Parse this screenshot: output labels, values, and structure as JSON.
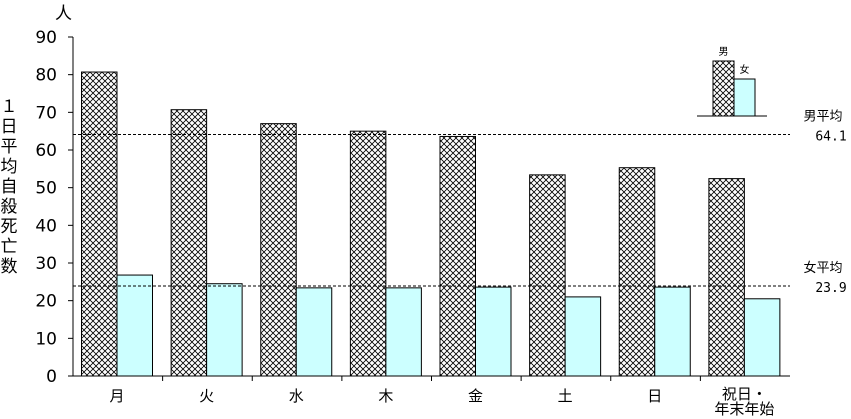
{
  "chart_data": {
    "type": "bar",
    "unit": "人",
    "ylabel": "１日平均自殺死亡数",
    "ylim": [
      0,
      90
    ],
    "yticks": [
      0,
      10,
      20,
      30,
      40,
      50,
      60,
      70,
      80,
      90
    ],
    "categories": [
      "月",
      "火",
      "水",
      "木",
      "金",
      "土",
      "日",
      [
        "祝日・",
        "年末年始"
      ]
    ],
    "series": [
      {
        "name": "男",
        "values": [
          80.7,
          70.7,
          67.0,
          65.0,
          63.6,
          53.4,
          55.3,
          52.4
        ],
        "fill": "crosshatch"
      },
      {
        "name": "女",
        "values": [
          26.8,
          24.5,
          23.4,
          23.4,
          23.6,
          21.0,
          23.6,
          20.5
        ],
        "fill": "#ccffff"
      }
    ],
    "averages": [
      {
        "label": "男平均",
        "value": "64.1",
        "y": 64.1
      },
      {
        "label": "女平均",
        "value": "23.9",
        "y": 23.9
      }
    ],
    "legend": {
      "position": "top-right"
    },
    "grid": false
  }
}
